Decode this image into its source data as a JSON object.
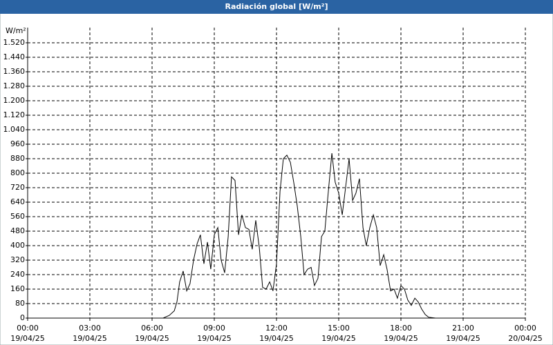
{
  "chart_data": {
    "type": "line",
    "title": "Radiación global [W/m²]",
    "y_unit": "W/m²",
    "x": [
      0,
      6.53,
      6.83,
      7.07,
      7.2,
      7.33,
      7.5,
      7.67,
      7.83,
      8.0,
      8.17,
      8.33,
      8.5,
      8.67,
      8.83,
      9.0,
      9.17,
      9.33,
      9.5,
      9.67,
      9.83,
      10.0,
      10.17,
      10.33,
      10.5,
      10.67,
      10.83,
      11.0,
      11.17,
      11.33,
      11.5,
      11.67,
      11.83,
      12.0,
      12.17,
      12.33,
      12.5,
      12.67,
      12.83,
      13.0,
      13.17,
      13.33,
      13.5,
      13.67,
      13.83,
      14.0,
      14.17,
      14.33,
      14.5,
      14.67,
      14.83,
      15.0,
      15.17,
      15.33,
      15.5,
      15.67,
      15.83,
      16.0,
      16.17,
      16.33,
      16.5,
      16.67,
      16.83,
      17.0,
      17.17,
      17.33,
      17.5,
      17.67,
      17.83,
      18.0,
      18.17,
      18.33,
      18.5,
      18.67,
      18.83,
      19.0,
      19.17,
      19.33,
      19.67,
      23.83
    ],
    "values": [
      0,
      0,
      15,
      40,
      90,
      200,
      260,
      150,
      190,
      320,
      410,
      460,
      300,
      420,
      270,
      460,
      500,
      320,
      250,
      450,
      780,
      760,
      460,
      570,
      500,
      490,
      380,
      540,
      390,
      170,
      160,
      200,
      150,
      300,
      700,
      880,
      900,
      860,
      750,
      620,
      450,
      240,
      270,
      280,
      180,
      220,
      450,
      480,
      700,
      910,
      750,
      690,
      570,
      720,
      880,
      650,
      690,
      770,
      500,
      400,
      500,
      570,
      500,
      290,
      350,
      270,
      150,
      160,
      110,
      180,
      160,
      100,
      70,
      110,
      90,
      50,
      20,
      5,
      0,
      0
    ],
    "color": "#000000",
    "xlim": [
      0,
      24
    ],
    "xticks": [
      {
        "value": 0,
        "label": "00:00",
        "date": "19/04/25"
      },
      {
        "value": 3,
        "label": "03:00",
        "date": "19/04/25"
      },
      {
        "value": 6,
        "label": "06:00",
        "date": "19/04/25"
      },
      {
        "value": 9,
        "label": "09:00",
        "date": "19/04/25"
      },
      {
        "value": 12,
        "label": "12:00",
        "date": "19/04/25"
      },
      {
        "value": 15,
        "label": "15:00",
        "date": "19/04/25"
      },
      {
        "value": 18,
        "label": "18:00",
        "date": "19/04/25"
      },
      {
        "value": 21,
        "label": "21:00",
        "date": "19/04/25"
      },
      {
        "value": 24,
        "label": "00:00",
        "date": "20/04/25"
      }
    ],
    "ylim": [
      0,
      1520
    ],
    "yticks": [
      0,
      80,
      160,
      240,
      320,
      400,
      480,
      560,
      640,
      720,
      800,
      880,
      960,
      {
        "value": 1040,
        "label": "1.040"
      },
      {
        "value": 1120,
        "label": "1.120"
      },
      {
        "value": 1200,
        "label": "1.200"
      },
      {
        "value": 1280,
        "label": "1.280"
      },
      {
        "value": 1360,
        "label": "1.360"
      },
      {
        "value": 1440,
        "label": "1.440"
      },
      {
        "value": 1520,
        "label": "1.520"
      }
    ],
    "grid": true
  }
}
